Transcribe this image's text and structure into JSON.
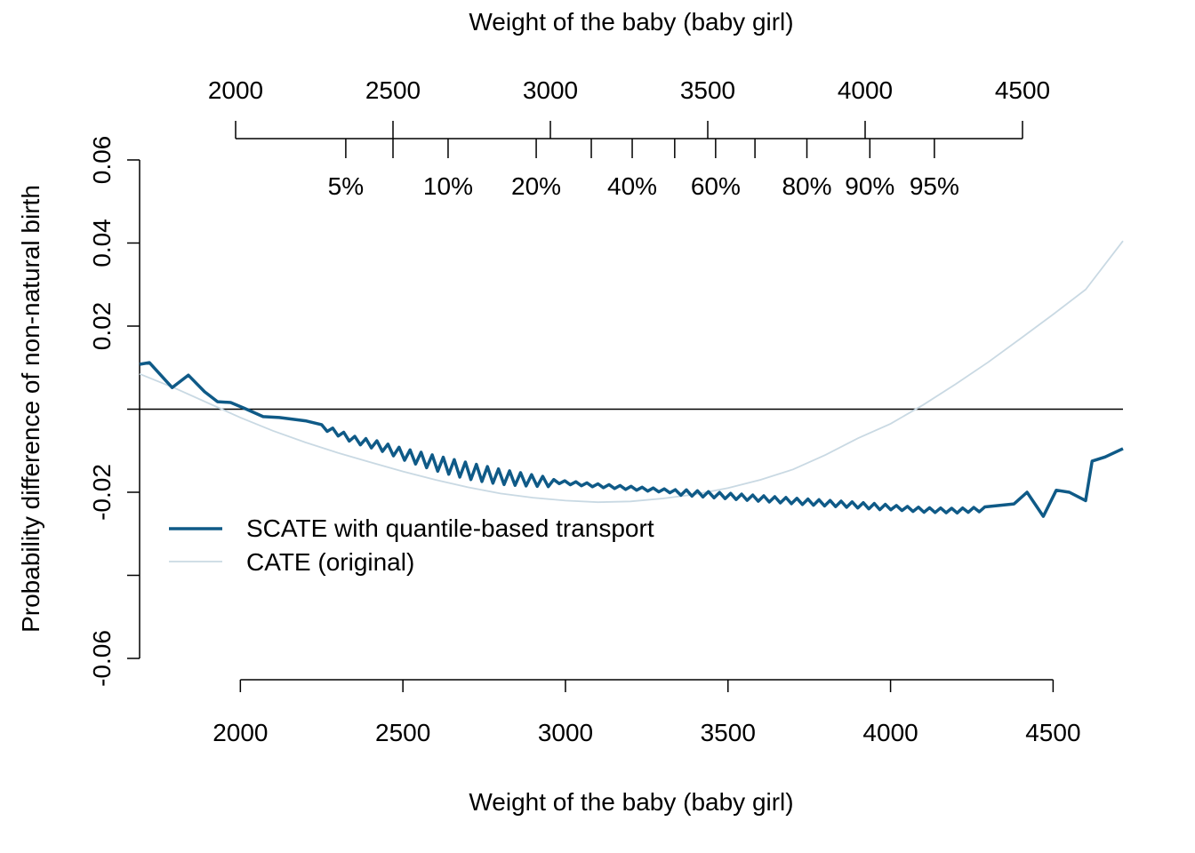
{
  "chart_data": {
    "type": "line",
    "xlabel": "Weight of the baby (baby girl)",
    "top_axis_title": "Weight of the baby (baby girl)",
    "ylabel": "Probability difference of non-natural birth",
    "xlim": [
      1690,
      4715
    ],
    "ylim": [
      -0.06,
      0.06
    ],
    "x_ticks": [
      2000,
      2500,
      3000,
      3500,
      4000,
      4500
    ],
    "y_ticks": [
      0.06,
      0.04,
      0.02,
      0,
      -0.02,
      -0.04,
      -0.06
    ],
    "y_tick_labels": [
      "0.06",
      "0.04",
      "0.02",
      "",
      "-0.02",
      "",
      "-0.06"
    ],
    "top_axis": {
      "range": [
        2000,
        4500
      ],
      "ticks": [
        2000,
        2500,
        3000,
        3500,
        4000,
        4500
      ],
      "quantile_ticks": [
        {
          "x": 2350,
          "label": "5%"
        },
        {
          "x": 2500,
          "label": ""
        },
        {
          "x": 2675,
          "label": "10%"
        },
        {
          "x": 2955,
          "label": "20%"
        },
        {
          "x": 3130,
          "label": ""
        },
        {
          "x": 3260,
          "label": "40%"
        },
        {
          "x": 3395,
          "label": ""
        },
        {
          "x": 3525,
          "label": "60%"
        },
        {
          "x": 3650,
          "label": ""
        },
        {
          "x": 3815,
          "label": "80%"
        },
        {
          "x": 4015,
          "label": "90%"
        },
        {
          "x": 4220,
          "label": "95%"
        }
      ]
    },
    "hline_y": 0,
    "legend": {
      "position": "bottom-left"
    },
    "series": [
      {
        "name": "SCATE with quantile-based transport",
        "color": "#0f5a87",
        "style": "jagged",
        "x": [
          1690,
          1720,
          1790,
          1840,
          1890,
          1930,
          1970,
          2010,
          2070,
          2120,
          2200,
          2280,
          2350,
          2420,
          2500,
          2600,
          2700,
          2800,
          2900,
          3000,
          3100,
          3200,
          3300,
          3400,
          3500,
          3600,
          3700,
          3800,
          3900,
          4000,
          4100,
          4200,
          4300,
          4380,
          4420,
          4470,
          4510,
          4550,
          4600,
          4620,
          4660,
          4715
        ],
        "y": [
          0.0108,
          0.0112,
          0.0052,
          0.0082,
          0.0042,
          0.0018,
          0.0016,
          0.0003,
          -0.0018,
          -0.002,
          -0.0028,
          -0.0048,
          -0.007,
          -0.0082,
          -0.0102,
          -0.0122,
          -0.014,
          -0.0155,
          -0.0166,
          -0.0175,
          -0.0182,
          -0.0188,
          -0.0194,
          -0.02,
          -0.0206,
          -0.0212,
          -0.0218,
          -0.0223,
          -0.0228,
          -0.0234,
          -0.024,
          -0.0242,
          -0.0238,
          -0.0228,
          -0.02,
          -0.0258,
          -0.0195,
          -0.02,
          -0.022,
          -0.0125,
          -0.0115,
          -0.0095
        ]
      },
      {
        "name": "CATE (original)",
        "color": "#c9d9e3",
        "style": "smooth",
        "x": [
          1690,
          1800,
          1900,
          2000,
          2100,
          2200,
          2300,
          2400,
          2500,
          2600,
          2700,
          2800,
          2900,
          3000,
          3100,
          3200,
          3300,
          3400,
          3500,
          3600,
          3700,
          3800,
          3900,
          4000,
          4100,
          4200,
          4300,
          4400,
          4500,
          4600,
          4715
        ],
        "y": [
          0.0085,
          0.005,
          0.0015,
          -0.002,
          -0.0052,
          -0.008,
          -0.0105,
          -0.0128,
          -0.015,
          -0.017,
          -0.0188,
          -0.0203,
          -0.0213,
          -0.022,
          -0.0224,
          -0.0222,
          -0.0215,
          -0.0205,
          -0.019,
          -0.017,
          -0.0145,
          -0.011,
          -0.007,
          -0.0035,
          0.001,
          0.006,
          0.0113,
          0.017,
          0.0228,
          0.0288,
          0.0405
        ]
      }
    ]
  }
}
